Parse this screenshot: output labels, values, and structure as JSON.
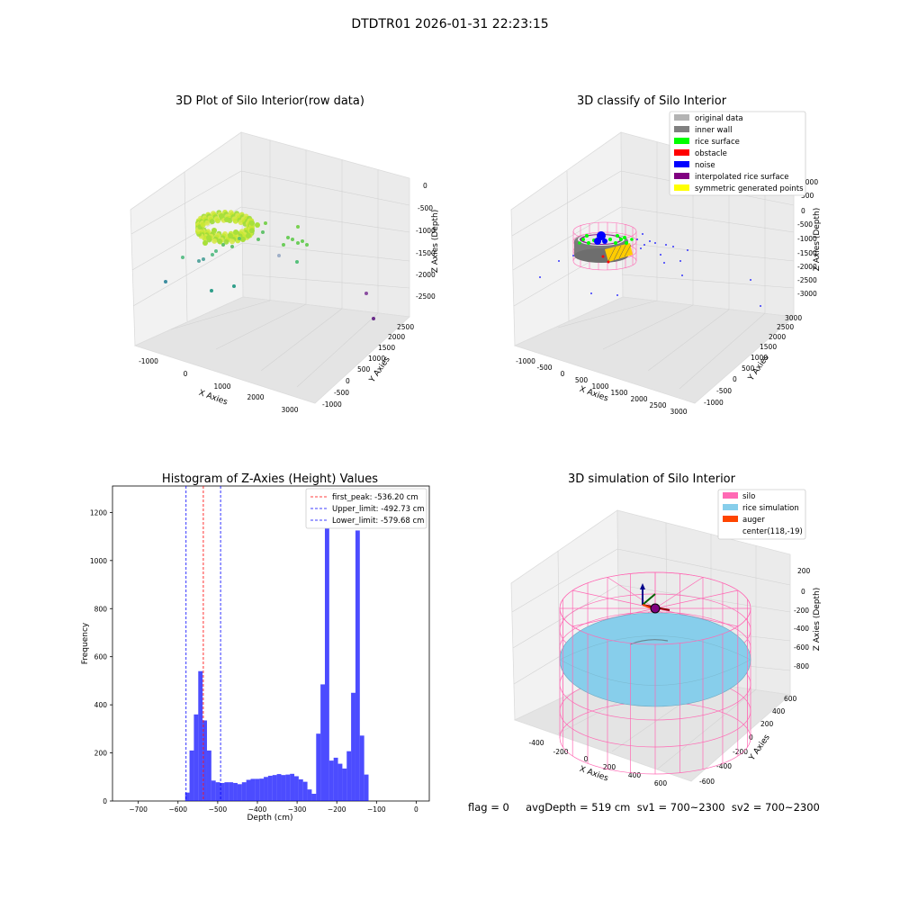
{
  "figure": {
    "suptitle": "DTDTR01 2026-01-31 22:23:15"
  },
  "panels": {
    "raw": {
      "title": "3D Plot of Silo Interior(row data)",
      "xlabel": "X Axies",
      "ylabel": "Y Axies",
      "zlabel": "Z Axies (Depth)",
      "xticks": [
        "-1000",
        "0",
        "1000",
        "2000",
        "3000"
      ],
      "yticks": [
        "-1000",
        "-500",
        "0",
        "500",
        "1000",
        "1500",
        "2000",
        "2500"
      ],
      "zticks": [
        "0",
        "-500",
        "-1000",
        "-1500",
        "-2000",
        "-2500"
      ]
    },
    "classify": {
      "title": "3D classify of Silo Interior",
      "xlabel": "X Axies",
      "ylabel": "Y Axies",
      "zlabel": "Z Axies (Depth)",
      "xticks": [
        "-1000",
        "-500",
        "0",
        "500",
        "1000",
        "1500",
        "2000",
        "2500",
        "3000"
      ],
      "yticks": [
        "-1000",
        "-500",
        "0",
        "500",
        "1000",
        "1500",
        "2000",
        "2500",
        "3000"
      ],
      "zticks": [
        "1000",
        "500",
        "0",
        "-500",
        "-1000",
        "-1500",
        "-2000",
        "-2500",
        "-3000"
      ],
      "legend": [
        {
          "label": "original data",
          "color": "#b3b3b3"
        },
        {
          "label": "inner wall",
          "color": "#808080"
        },
        {
          "label": "rice surface",
          "color": "#00ff00"
        },
        {
          "label": "obstacle",
          "color": "#ff0000"
        },
        {
          "label": "noise",
          "color": "#0000ff"
        },
        {
          "label": "interpolated rice surface",
          "color": "#800080"
        },
        {
          "label": "symmetric generated points",
          "color": "#ffff00"
        }
      ]
    },
    "simulation": {
      "title": "3D simulation of Silo Interior",
      "xlabel": "X Axies",
      "ylabel": "Y Axies",
      "zlabel": "Z Axies (Depth)",
      "xticks": [
        "-400",
        "-200",
        "0",
        "200",
        "400",
        "600"
      ],
      "yticks": [
        "-600",
        "-400",
        "-200",
        "0",
        "200",
        "400",
        "600"
      ],
      "zticks": [
        "200",
        "0",
        "-200",
        "-400",
        "-600",
        "-800"
      ],
      "legend": [
        {
          "label": "silo",
          "color": "#ff69b4"
        },
        {
          "label": "rice simulation",
          "color": "#87ceeb"
        },
        {
          "label": "auger",
          "color": "#ff4500"
        },
        {
          "label": "center(118,-19)",
          "color": ""
        }
      ]
    },
    "status_line": "flag = 0     avgDepth = 519 cm  sv1 = 700~2300  sv2 = 700~2300"
  },
  "chart_data": {
    "type": "bar",
    "title": "Histogram of Z-Axies (Height) Values",
    "xlabel": "Depth (cm)",
    "ylabel": "Frequency",
    "xlim": [
      -765,
      33
    ],
    "ylim": [
      0,
      1310
    ],
    "xticks": [
      -700,
      -600,
      -500,
      -400,
      -300,
      -200,
      -100,
      0
    ],
    "yticks": [
      0,
      200,
      400,
      600,
      800,
      1000,
      1200
    ],
    "bar_color": "#0000ff",
    "bins": [
      [
        -582,
        -571,
        35
      ],
      [
        -571,
        -560,
        210
      ],
      [
        -560,
        -549,
        360
      ],
      [
        -549,
        -538,
        540
      ],
      [
        -538,
        -527,
        335
      ],
      [
        -527,
        -516,
        210
      ],
      [
        -516,
        -505,
        85
      ],
      [
        -505,
        -494,
        78
      ],
      [
        -494,
        -483,
        75
      ],
      [
        -483,
        -472,
        78
      ],
      [
        -472,
        -461,
        78
      ],
      [
        -461,
        -450,
        75
      ],
      [
        -450,
        -439,
        70
      ],
      [
        -439,
        -428,
        78
      ],
      [
        -428,
        -417,
        88
      ],
      [
        -417,
        -406,
        92
      ],
      [
        -406,
        -395,
        92
      ],
      [
        -395,
        -384,
        93
      ],
      [
        -384,
        -373,
        100
      ],
      [
        -373,
        -362,
        105
      ],
      [
        -362,
        -351,
        108
      ],
      [
        -351,
        -340,
        112
      ],
      [
        -340,
        -329,
        108
      ],
      [
        -329,
        -318,
        110
      ],
      [
        -318,
        -307,
        113
      ],
      [
        -307,
        -296,
        103
      ],
      [
        -296,
        -285,
        90
      ],
      [
        -285,
        -274,
        80
      ],
      [
        -274,
        -263,
        48
      ],
      [
        -263,
        -252,
        30
      ],
      [
        -252,
        -241,
        280
      ],
      [
        -241,
        -230,
        485
      ],
      [
        -230,
        -219,
        1245
      ],
      [
        -219,
        -208,
        168
      ],
      [
        -208,
        -197,
        180
      ],
      [
        -197,
        -186,
        155
      ],
      [
        -186,
        -175,
        135
      ],
      [
        -175,
        -164,
        207
      ],
      [
        -164,
        -153,
        450
      ],
      [
        -153,
        -142,
        1125
      ],
      [
        -142,
        -131,
        272
      ],
      [
        -131,
        -120,
        110
      ]
    ],
    "vlines": [
      {
        "label": "first_peak: -536.20 cm",
        "x": -536.2,
        "color": "#ff0000"
      },
      {
        "label": "Upper_limit: -492.73 cm",
        "x": -492.73,
        "color": "#0000ff"
      },
      {
        "label": "Lower_limit: -579.68 cm",
        "x": -579.68,
        "color": "#0000ff"
      }
    ]
  }
}
